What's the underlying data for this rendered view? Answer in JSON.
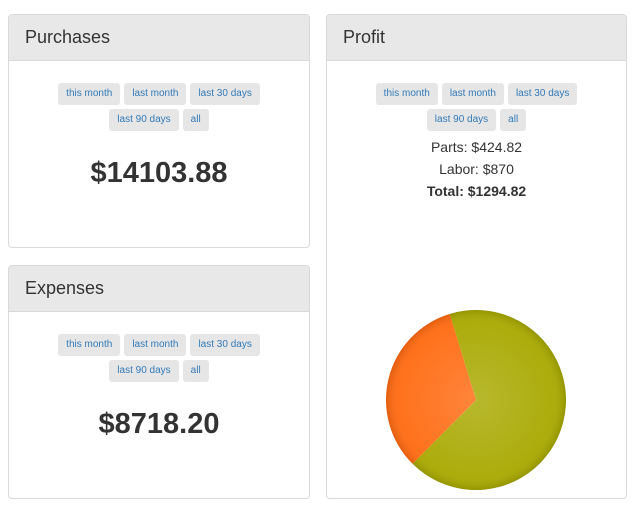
{
  "filters": {
    "this_month": "this month",
    "last_month": "last month",
    "last_30_days": "last 30 days",
    "last_90_days": "last 90 days",
    "all": "all"
  },
  "purchases": {
    "title": "Purchases",
    "value": "$14103.88"
  },
  "expenses": {
    "title": "Expenses",
    "value": "$8718.20"
  },
  "profit": {
    "title": "Profit",
    "parts": "Parts: $424.82",
    "labor": "Labor: $870",
    "total": "Total: $1294.82"
  },
  "colors": {
    "labor": "#a8a800",
    "parts": "#ff6a10",
    "button_text": "#337ab7"
  },
  "chart_data": {
    "type": "pie",
    "categories": [
      "Labor",
      "Parts"
    ],
    "values": [
      870,
      424.82
    ],
    "colors": [
      "#a8a800",
      "#ff6a10"
    ]
  }
}
